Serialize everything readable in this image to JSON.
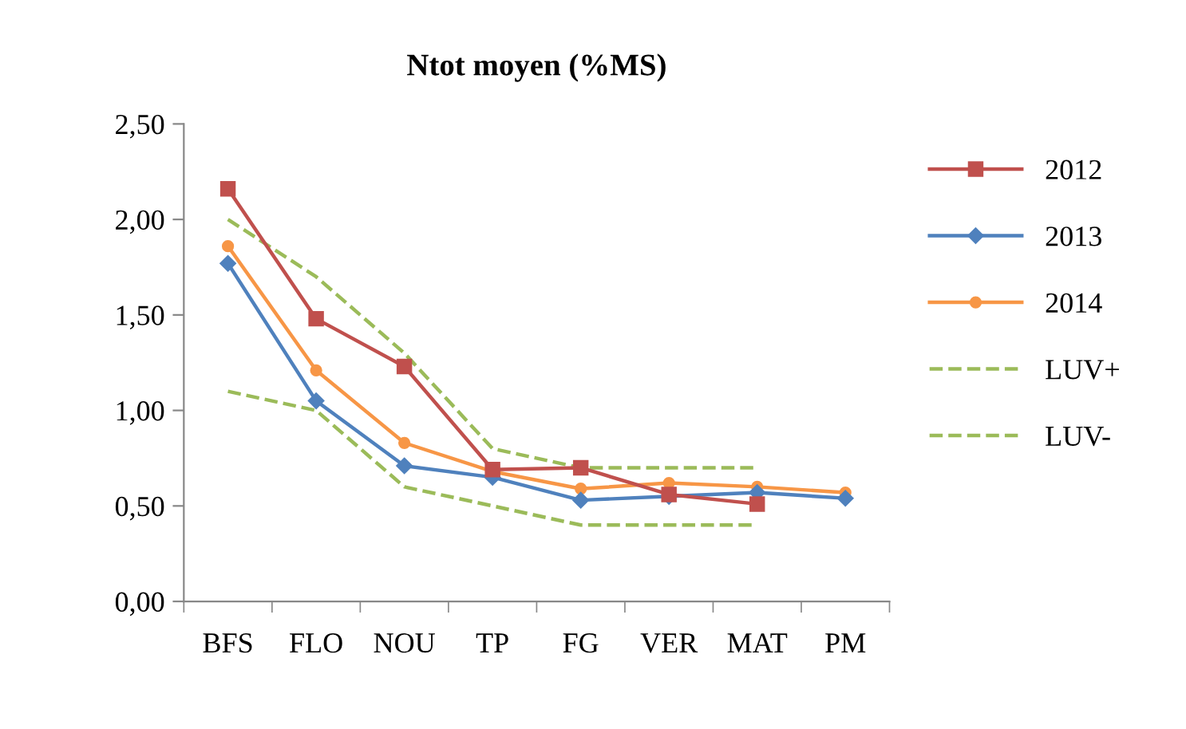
{
  "chart_data": {
    "type": "line",
    "title": "Ntot moyen (%MS)",
    "categories": [
      "BFS",
      "FLO",
      "NOU",
      "TP",
      "FG",
      "VER",
      "MAT",
      "PM"
    ],
    "series": [
      {
        "name": "2012",
        "color": "#c0504d",
        "marker": "square",
        "line_style": "solid",
        "values": [
          2.16,
          1.48,
          1.23,
          0.69,
          0.7,
          0.56,
          0.51,
          null
        ]
      },
      {
        "name": "2013",
        "color": "#4f81bd",
        "marker": "diamond",
        "line_style": "solid",
        "values": [
          1.77,
          1.05,
          0.71,
          0.65,
          0.53,
          0.55,
          0.57,
          0.54
        ]
      },
      {
        "name": "2014",
        "color": "#f79646",
        "marker": "circle",
        "line_style": "solid",
        "values": [
          1.86,
          1.21,
          0.83,
          0.68,
          0.59,
          0.62,
          0.6,
          0.57
        ]
      },
      {
        "name": "LUV+",
        "color": "#9bbb59",
        "marker": "none",
        "line_style": "dashed",
        "values": [
          2.0,
          1.7,
          1.3,
          0.8,
          0.7,
          0.7,
          0.7,
          null
        ]
      },
      {
        "name": "LUV-",
        "color": "#9bbb59",
        "marker": "none",
        "line_style": "dashed",
        "values": [
          1.1,
          1.0,
          0.6,
          0.5,
          0.4,
          0.4,
          0.4,
          null
        ]
      }
    ],
    "ylim": [
      0,
      2.5
    ],
    "yticks": [
      {
        "value": 0,
        "label": "0,00"
      },
      {
        "value": 0.5,
        "label": "0,50"
      },
      {
        "value": 1,
        "label": "1,00"
      },
      {
        "value": 1.5,
        "label": "1,50"
      },
      {
        "value": 2,
        "label": "2,00"
      },
      {
        "value": 2.5,
        "label": "2,50"
      }
    ],
    "grid": false,
    "legend": "right"
  }
}
